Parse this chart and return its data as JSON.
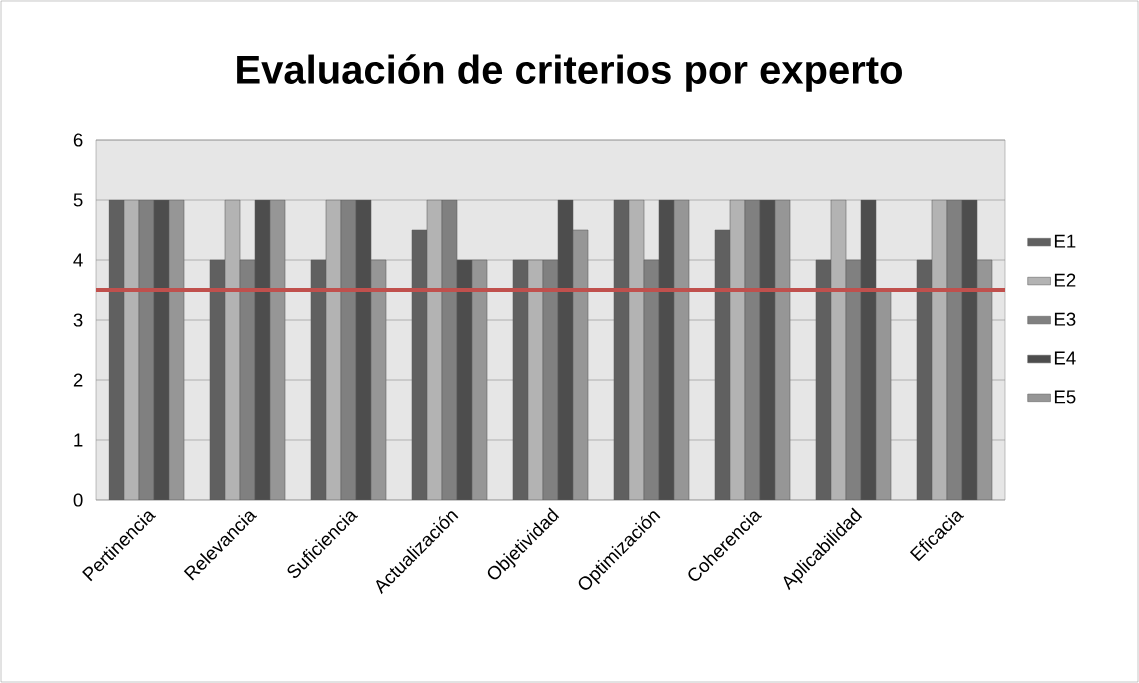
{
  "chart_data": {
    "type": "bar",
    "title": "Evaluación de criterios por experto",
    "categories": [
      "Pertinencia",
      "Relevancia",
      "Suficiencia",
      "Actualización",
      "Objetividad",
      "Optimización",
      "Coherencia",
      "Aplicabilidad",
      "Eficacia"
    ],
    "series": [
      {
        "name": "E1",
        "color": "#606060",
        "values": [
          5,
          4,
          4,
          4.5,
          4,
          5,
          4.5,
          4,
          4
        ]
      },
      {
        "name": "E2",
        "color": "#b3b3b3",
        "values": [
          5,
          5,
          5,
          5,
          4,
          5,
          5,
          5,
          5
        ]
      },
      {
        "name": "E3",
        "color": "#808080",
        "values": [
          5,
          4,
          5,
          5,
          4,
          4,
          5,
          4,
          5
        ]
      },
      {
        "name": "E4",
        "color": "#4d4d4d",
        "values": [
          5,
          5,
          5,
          4,
          5,
          5,
          5,
          5,
          5
        ]
      },
      {
        "name": "E5",
        "color": "#969696",
        "values": [
          5,
          5,
          4,
          4,
          4.5,
          5,
          5,
          3.5,
          4
        ]
      }
    ],
    "ylim": [
      0,
      6
    ],
    "yticks": [
      0,
      1,
      2,
      3,
      4,
      5,
      6
    ],
    "grid": "y",
    "legend": "right",
    "ref_lines": [
      {
        "axis": "y",
        "value": 3.5,
        "color": "#c0504d"
      }
    ]
  }
}
